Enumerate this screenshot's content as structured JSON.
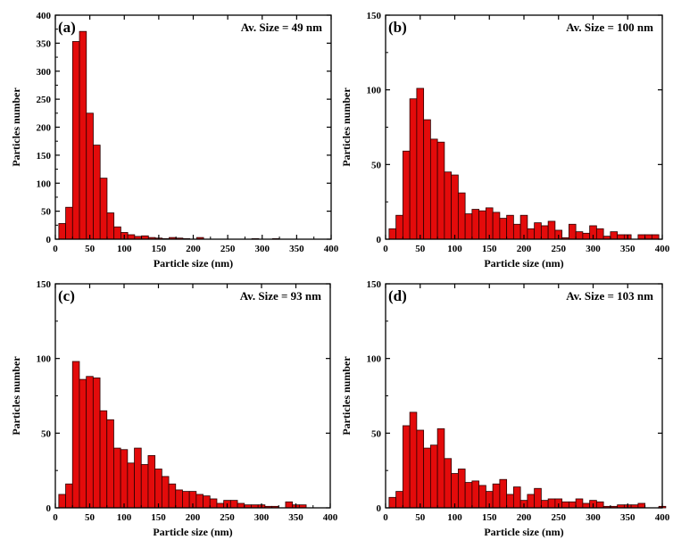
{
  "chart_data": [
    {
      "type": "bar",
      "panel_label": "(a)",
      "annotation": "Av. Size = 49 nm",
      "xlabel": "Particle size (nm)",
      "ylabel": "Particles number",
      "xlim": [
        0,
        400
      ],
      "ylim": [
        0,
        400
      ],
      "xticks": [
        0,
        50,
        100,
        150,
        200,
        250,
        300,
        350,
        400
      ],
      "yticks": [
        0,
        50,
        100,
        150,
        200,
        250,
        300,
        350,
        400
      ],
      "bin_width": 10,
      "bins": [
        {
          "x": 10,
          "y": 28
        },
        {
          "x": 20,
          "y": 57
        },
        {
          "x": 30,
          "y": 353
        },
        {
          "x": 40,
          "y": 371
        },
        {
          "x": 50,
          "y": 225
        },
        {
          "x": 60,
          "y": 168
        },
        {
          "x": 70,
          "y": 109
        },
        {
          "x": 80,
          "y": 47
        },
        {
          "x": 90,
          "y": 22
        },
        {
          "x": 100,
          "y": 12
        },
        {
          "x": 110,
          "y": 8
        },
        {
          "x": 120,
          "y": 5
        },
        {
          "x": 130,
          "y": 6
        },
        {
          "x": 140,
          "y": 3
        },
        {
          "x": 150,
          "y": 2
        },
        {
          "x": 160,
          "y": 1
        },
        {
          "x": 170,
          "y": 3
        },
        {
          "x": 180,
          "y": 2
        },
        {
          "x": 190,
          "y": 1
        },
        {
          "x": 210,
          "y": 3
        },
        {
          "x": 290,
          "y": 1
        },
        {
          "x": 320,
          "y": 1
        }
      ]
    },
    {
      "type": "bar",
      "panel_label": "(b)",
      "annotation": "Av. Size = 100 nm",
      "xlabel": "Particle size (nm)",
      "ylabel": "Particles number",
      "xlim": [
        0,
        400
      ],
      "ylim": [
        0,
        150
      ],
      "xticks": [
        0,
        50,
        100,
        150,
        200,
        250,
        300,
        350,
        400
      ],
      "yticks": [
        0,
        50,
        100,
        150
      ],
      "bin_width": 10,
      "bins": [
        {
          "x": 10,
          "y": 7
        },
        {
          "x": 20,
          "y": 16
        },
        {
          "x": 30,
          "y": 59
        },
        {
          "x": 40,
          "y": 94
        },
        {
          "x": 50,
          "y": 101
        },
        {
          "x": 60,
          "y": 80
        },
        {
          "x": 70,
          "y": 67
        },
        {
          "x": 80,
          "y": 65
        },
        {
          "x": 90,
          "y": 45
        },
        {
          "x": 100,
          "y": 43
        },
        {
          "x": 110,
          "y": 31
        },
        {
          "x": 120,
          "y": 17
        },
        {
          "x": 130,
          "y": 20
        },
        {
          "x": 140,
          "y": 19
        },
        {
          "x": 150,
          "y": 21
        },
        {
          "x": 160,
          "y": 18
        },
        {
          "x": 170,
          "y": 14
        },
        {
          "x": 180,
          "y": 16
        },
        {
          "x": 190,
          "y": 10
        },
        {
          "x": 200,
          "y": 16
        },
        {
          "x": 210,
          "y": 7
        },
        {
          "x": 220,
          "y": 11
        },
        {
          "x": 230,
          "y": 9
        },
        {
          "x": 240,
          "y": 12
        },
        {
          "x": 250,
          "y": 6
        },
        {
          "x": 260,
          "y": 1
        },
        {
          "x": 270,
          "y": 10
        },
        {
          "x": 280,
          "y": 5
        },
        {
          "x": 290,
          "y": 4
        },
        {
          "x": 300,
          "y": 9
        },
        {
          "x": 310,
          "y": 7
        },
        {
          "x": 320,
          "y": 2
        },
        {
          "x": 330,
          "y": 5
        },
        {
          "x": 340,
          "y": 3
        },
        {
          "x": 350,
          "y": 3
        },
        {
          "x": 370,
          "y": 3
        },
        {
          "x": 380,
          "y": 3
        },
        {
          "x": 390,
          "y": 3
        }
      ]
    },
    {
      "type": "bar",
      "panel_label": "(c)",
      "annotation": "Av. Size = 93 nm",
      "xlabel": "Particle size (nm)",
      "ylabel": "Particles number",
      "xlim": [
        0,
        400
      ],
      "ylim": [
        0,
        150
      ],
      "xticks": [
        0,
        50,
        100,
        150,
        200,
        250,
        300,
        350,
        400
      ],
      "yticks": [
        0,
        50,
        100,
        150
      ],
      "bin_width": 10,
      "bins": [
        {
          "x": 10,
          "y": 9
        },
        {
          "x": 20,
          "y": 16
        },
        {
          "x": 30,
          "y": 98
        },
        {
          "x": 40,
          "y": 86
        },
        {
          "x": 50,
          "y": 88
        },
        {
          "x": 60,
          "y": 87
        },
        {
          "x": 70,
          "y": 65
        },
        {
          "x": 80,
          "y": 59
        },
        {
          "x": 90,
          "y": 40
        },
        {
          "x": 100,
          "y": 39
        },
        {
          "x": 110,
          "y": 30
        },
        {
          "x": 120,
          "y": 40
        },
        {
          "x": 130,
          "y": 29
        },
        {
          "x": 140,
          "y": 35
        },
        {
          "x": 150,
          "y": 26
        },
        {
          "x": 160,
          "y": 21
        },
        {
          "x": 170,
          "y": 16
        },
        {
          "x": 180,
          "y": 12
        },
        {
          "x": 190,
          "y": 11
        },
        {
          "x": 200,
          "y": 11
        },
        {
          "x": 210,
          "y": 9
        },
        {
          "x": 220,
          "y": 8
        },
        {
          "x": 230,
          "y": 6
        },
        {
          "x": 240,
          "y": 3
        },
        {
          "x": 250,
          "y": 5
        },
        {
          "x": 260,
          "y": 5
        },
        {
          "x": 270,
          "y": 3
        },
        {
          "x": 280,
          "y": 2
        },
        {
          "x": 290,
          "y": 2
        },
        {
          "x": 300,
          "y": 2
        },
        {
          "x": 310,
          "y": 1
        },
        {
          "x": 320,
          "y": 1
        },
        {
          "x": 340,
          "y": 4
        },
        {
          "x": 350,
          "y": 2
        },
        {
          "x": 360,
          "y": 2
        }
      ]
    },
    {
      "type": "bar",
      "panel_label": "(d)",
      "annotation": "Av. Size = 103 nm",
      "xlabel": "Particle size (nm)",
      "ylabel": "Particles number",
      "xlim": [
        0,
        400
      ],
      "ylim": [
        0,
        150
      ],
      "xticks": [
        0,
        50,
        100,
        150,
        200,
        250,
        300,
        350,
        400
      ],
      "yticks": [
        0,
        50,
        100,
        150
      ],
      "bin_width": 10,
      "bins": [
        {
          "x": 10,
          "y": 7
        },
        {
          "x": 20,
          "y": 11
        },
        {
          "x": 30,
          "y": 55
        },
        {
          "x": 40,
          "y": 64
        },
        {
          "x": 50,
          "y": 52
        },
        {
          "x": 60,
          "y": 40
        },
        {
          "x": 70,
          "y": 42
        },
        {
          "x": 80,
          "y": 53
        },
        {
          "x": 90,
          "y": 33
        },
        {
          "x": 100,
          "y": 23
        },
        {
          "x": 110,
          "y": 26
        },
        {
          "x": 120,
          "y": 17
        },
        {
          "x": 130,
          "y": 18
        },
        {
          "x": 140,
          "y": 15
        },
        {
          "x": 150,
          "y": 11
        },
        {
          "x": 160,
          "y": 16
        },
        {
          "x": 170,
          "y": 19
        },
        {
          "x": 180,
          "y": 9
        },
        {
          "x": 190,
          "y": 14
        },
        {
          "x": 200,
          "y": 5
        },
        {
          "x": 210,
          "y": 9
        },
        {
          "x": 220,
          "y": 13
        },
        {
          "x": 230,
          "y": 5
        },
        {
          "x": 240,
          "y": 6
        },
        {
          "x": 250,
          "y": 6
        },
        {
          "x": 260,
          "y": 4
        },
        {
          "x": 270,
          "y": 4
        },
        {
          "x": 280,
          "y": 6
        },
        {
          "x": 290,
          "y": 3
        },
        {
          "x": 300,
          "y": 5
        },
        {
          "x": 310,
          "y": 4
        },
        {
          "x": 320,
          "y": 1
        },
        {
          "x": 330,
          "y": 1
        },
        {
          "x": 340,
          "y": 2
        },
        {
          "x": 350,
          "y": 2
        },
        {
          "x": 360,
          "y": 2
        },
        {
          "x": 370,
          "y": 3
        },
        {
          "x": 400,
          "y": 1
        }
      ]
    }
  ],
  "colors": {
    "bar_fill": "#e30b0b",
    "bar_stroke": "#2a0000",
    "axis": "#000000"
  }
}
